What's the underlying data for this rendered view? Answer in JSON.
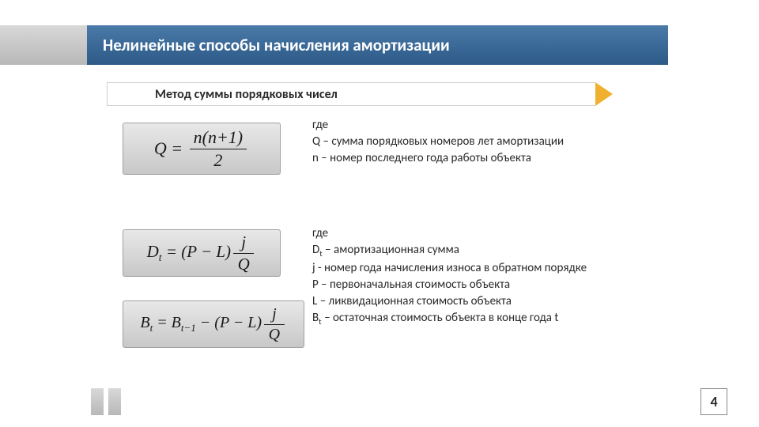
{
  "title": "Нелинейные способы начисления амортизации",
  "subtitle": "Метод суммы порядковых чисел",
  "desc1": {
    "heading": "где",
    "lines": [
      "Q – сумма порядковых номеров лет амортизации",
      "n – номер последнего года работы объекта"
    ]
  },
  "desc2": {
    "heading": "где",
    "lines": [
      "D<sub-t> – амортизационная сумма",
      "j - номер года начисления износа в обратном порядке",
      "P – первоначальная стоимость объекта",
      "L – ликвидационная стоимость объекта",
      "B<sub-t> – остаточная стоимость объекта в конце года t"
    ]
  },
  "page_number": "4",
  "colors": {
    "title_bg_top": "#4a7aa9",
    "title_bg_bottom": "#2d5a87",
    "gray_top": "#d8d8d8",
    "gray_bottom": "#b8b8b8",
    "arrow": "#f0b030",
    "formula_bg_top": "#e8e8e8",
    "formula_bg_bottom": "#c8c8c8",
    "text": "#2a2a2a"
  }
}
